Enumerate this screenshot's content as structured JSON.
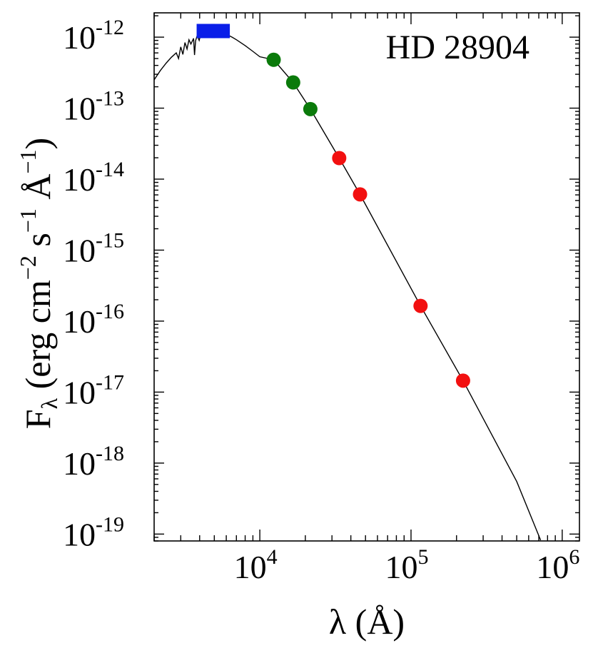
{
  "chart_data": {
    "type": "scatter",
    "title": "HD 28904",
    "xlabel": "λ (Å)",
    "ylabel": {
      "prefix": "F",
      "sub": "λ",
      "open": " (erg cm",
      "exp1": "−2",
      "mid1": " s",
      "exp2": "−1",
      "mid2": " Å",
      "exp3": "−1",
      "close": ")"
    },
    "x_scale": "log",
    "y_scale": "log",
    "xlim": [
      2000,
      1300000
    ],
    "ylim": [
      8e-20,
      2.2e-12
    ],
    "x_ticks": [
      {
        "value": 10000,
        "base": "10",
        "exp": "4"
      },
      {
        "value": 100000,
        "base": "10",
        "exp": "5"
      },
      {
        "value": 1000000,
        "base": "10",
        "exp": "6"
      }
    ],
    "y_ticks": [
      {
        "value": 1e-12,
        "base": "10",
        "exp": "-12"
      },
      {
        "value": 1e-13,
        "base": "10",
        "exp": "-13"
      },
      {
        "value": 1e-14,
        "base": "10",
        "exp": "-14"
      },
      {
        "value": 1e-15,
        "base": "10",
        "exp": "-15"
      },
      {
        "value": 1e-16,
        "base": "10",
        "exp": "-16"
      },
      {
        "value": 1e-17,
        "base": "10",
        "exp": "-17"
      },
      {
        "value": 1e-18,
        "base": "10",
        "exp": "-18"
      },
      {
        "value": 1e-19,
        "base": "10",
        "exp": "-19"
      }
    ],
    "series": [
      {
        "marker": "square",
        "color": "#0a1ee8",
        "points": [
          {
            "x": 4400,
            "y": 1.22e-12
          },
          {
            "x": 5500,
            "y": 1.22e-12
          }
        ]
      },
      {
        "marker": "circle",
        "color": "#0a7a0a",
        "points": [
          {
            "x": 12350,
            "y": 4.8e-13
          },
          {
            "x": 16620,
            "y": 2.3e-13
          },
          {
            "x": 21590,
            "y": 9.7e-14
          }
        ]
      },
      {
        "marker": "circle",
        "color": "#f21010",
        "points": [
          {
            "x": 33500,
            "y": 1.98e-14
          },
          {
            "x": 46000,
            "y": 6.1e-15
          },
          {
            "x": 115600,
            "y": 1.64e-16
          },
          {
            "x": 220900,
            "y": 1.45e-17
          }
        ]
      }
    ],
    "model_curve": [
      {
        "x": 2000,
        "y": 2.5e-13
      },
      {
        "x": 2200,
        "y": 3.4e-13
      },
      {
        "x": 2400,
        "y": 4.3e-13
      },
      {
        "x": 2600,
        "y": 5.2e-13
      },
      {
        "x": 2800,
        "y": 6e-13
      },
      {
        "x": 2900,
        "y": 5e-13
      },
      {
        "x": 3000,
        "y": 7.3e-13
      },
      {
        "x": 3100,
        "y": 5.7e-13
      },
      {
        "x": 3200,
        "y": 8.4e-13
      },
      {
        "x": 3300,
        "y": 6.8e-13
      },
      {
        "x": 3400,
        "y": 9.2e-13
      },
      {
        "x": 3500,
        "y": 8e-13
      },
      {
        "x": 3646,
        "y": 9.6e-13
      },
      {
        "x": 3700,
        "y": 5.6e-13
      },
      {
        "x": 3760,
        "y": 8.9e-13
      },
      {
        "x": 3850,
        "y": 1.05e-12
      },
      {
        "x": 3970,
        "y": 9e-13
      },
      {
        "x": 4100,
        "y": 1.17e-12
      },
      {
        "x": 4340,
        "y": 1.18e-12
      },
      {
        "x": 4600,
        "y": 1.23e-12
      },
      {
        "x": 4861,
        "y": 1.15e-12
      },
      {
        "x": 5000,
        "y": 1.24e-12
      },
      {
        "x": 5500,
        "y": 1.19e-12
      },
      {
        "x": 6000,
        "y": 1.1e-12
      },
      {
        "x": 6563,
        "y": 1e-12
      },
      {
        "x": 7000,
        "y": 9.2e-13
      },
      {
        "x": 8000,
        "y": 7.6e-13
      },
      {
        "x": 9000,
        "y": 6.3e-13
      },
      {
        "x": 10000,
        "y": 5.3e-13
      },
      {
        "x": 12350,
        "y": 4.8e-13
      },
      {
        "x": 16620,
        "y": 2.3e-13
      },
      {
        "x": 21590,
        "y": 9.7e-14
      },
      {
        "x": 33500,
        "y": 1.98e-14
      },
      {
        "x": 46000,
        "y": 6.1e-15
      },
      {
        "x": 115600,
        "y": 1.64e-16
      },
      {
        "x": 220900,
        "y": 1.45e-17
      },
      {
        "x": 500000,
        "y": 5.5e-19
      },
      {
        "x": 720000,
        "y": 8.2e-20
      }
    ],
    "grid": false,
    "legend": "none"
  }
}
